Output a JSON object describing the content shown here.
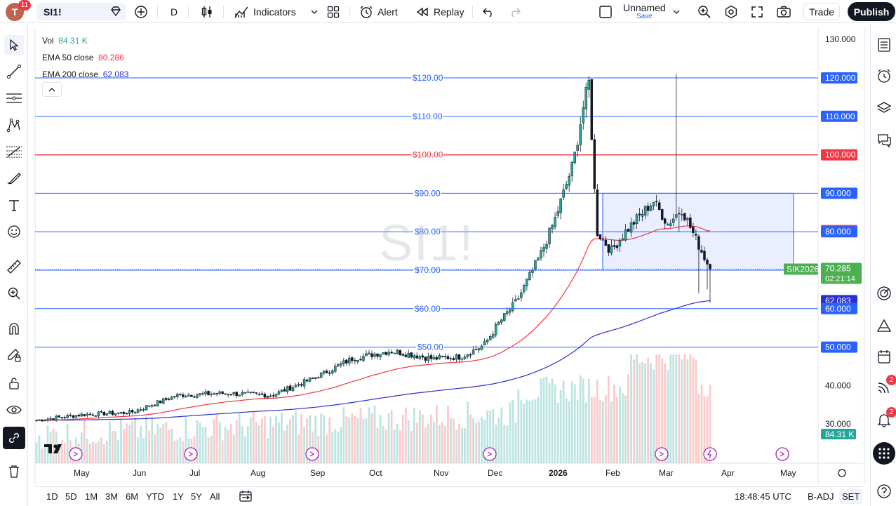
{
  "topbar": {
    "avatar_letter": "T",
    "avatar_badge": "11",
    "symbol": "SI1!",
    "interval": "D",
    "indicators_label": "Indicators",
    "alert_label": "Alert",
    "replay_label": "Replay",
    "layout_name": "Unnamed",
    "layout_save": "Save",
    "trade_label": "Trade",
    "publish_label": "Publish"
  },
  "legend": {
    "vol_label": "Vol",
    "vol_value": "84.31 K",
    "ema50_label": "EMA 50 close",
    "ema50_value": "80.286",
    "ema200_label": "EMA 200 close",
    "ema200_value": "62.083"
  },
  "watermark": "SI1!",
  "colors": {
    "up": "#26a69a",
    "down": "#ef5350",
    "ema50": "#f23645",
    "ema200": "#2a2fd1",
    "hline_blue": "#2962ff",
    "hline_red": "#f23645",
    "box_fill": "#2962ff"
  },
  "price_scale": {
    "ticks": [
      "130.000",
      "40.000",
      "30.000"
    ],
    "labels": [
      {
        "text": "120.000",
        "price": 120,
        "kind": "blue"
      },
      {
        "text": "110.000",
        "price": 110,
        "kind": "blue"
      },
      {
        "text": "100.000",
        "price": 100,
        "kind": "red"
      },
      {
        "text": "90.000",
        "price": 90,
        "kind": "blue"
      },
      {
        "text": "80.286",
        "price": 80.286,
        "kind": "ema50"
      },
      {
        "text": "80.000",
        "price": 80,
        "kind": "blue"
      },
      {
        "text": "70.000",
        "price": 70,
        "kind": "blue"
      },
      {
        "text": "62.083",
        "price": 62.083,
        "kind": "ema200"
      },
      {
        "text": "60.000",
        "price": 60,
        "kind": "blue"
      },
      {
        "text": "50.000",
        "price": 50,
        "kind": "blue"
      }
    ],
    "last_price": "70.285",
    "countdown": "02:21:14",
    "contract": "SIK2026",
    "volume_label": "84.31 K"
  },
  "hlines": [
    {
      "price": 120,
      "label": "$120.00",
      "color": "#2962ff"
    },
    {
      "price": 110,
      "label": "$110.00",
      "color": "#2962ff"
    },
    {
      "price": 100,
      "label": "$100.00",
      "color": "#f23645"
    },
    {
      "price": 90,
      "label": "$90.00",
      "color": "#2962ff"
    },
    {
      "price": 80,
      "label": "$80.00",
      "color": "#2962ff"
    },
    {
      "price": 70,
      "label": "$70.00",
      "color": "#2962ff"
    },
    {
      "price": 60,
      "label": "$60.00",
      "color": "#2962ff"
    },
    {
      "price": 50,
      "label": "$50.00",
      "color": "#2962ff"
    }
  ],
  "range_box": {
    "price_top": 90,
    "price_bottom": 70
  },
  "time_axis": [
    "May",
    "Jun",
    "Jul",
    "Aug",
    "Sep",
    "Oct",
    "Nov",
    "Dec",
    "2026",
    "Feb",
    "Mar",
    "Apr",
    "May"
  ],
  "bottombar": {
    "ranges": [
      "1D",
      "5D",
      "1M",
      "3M",
      "6M",
      "YTD",
      "1Y",
      "5Y",
      "All"
    ],
    "clock": "18:48:45 UTC",
    "badj": "B-ADJ",
    "set": "SET"
  },
  "rightbar_badges": [
    "2",
    "2"
  ]
}
